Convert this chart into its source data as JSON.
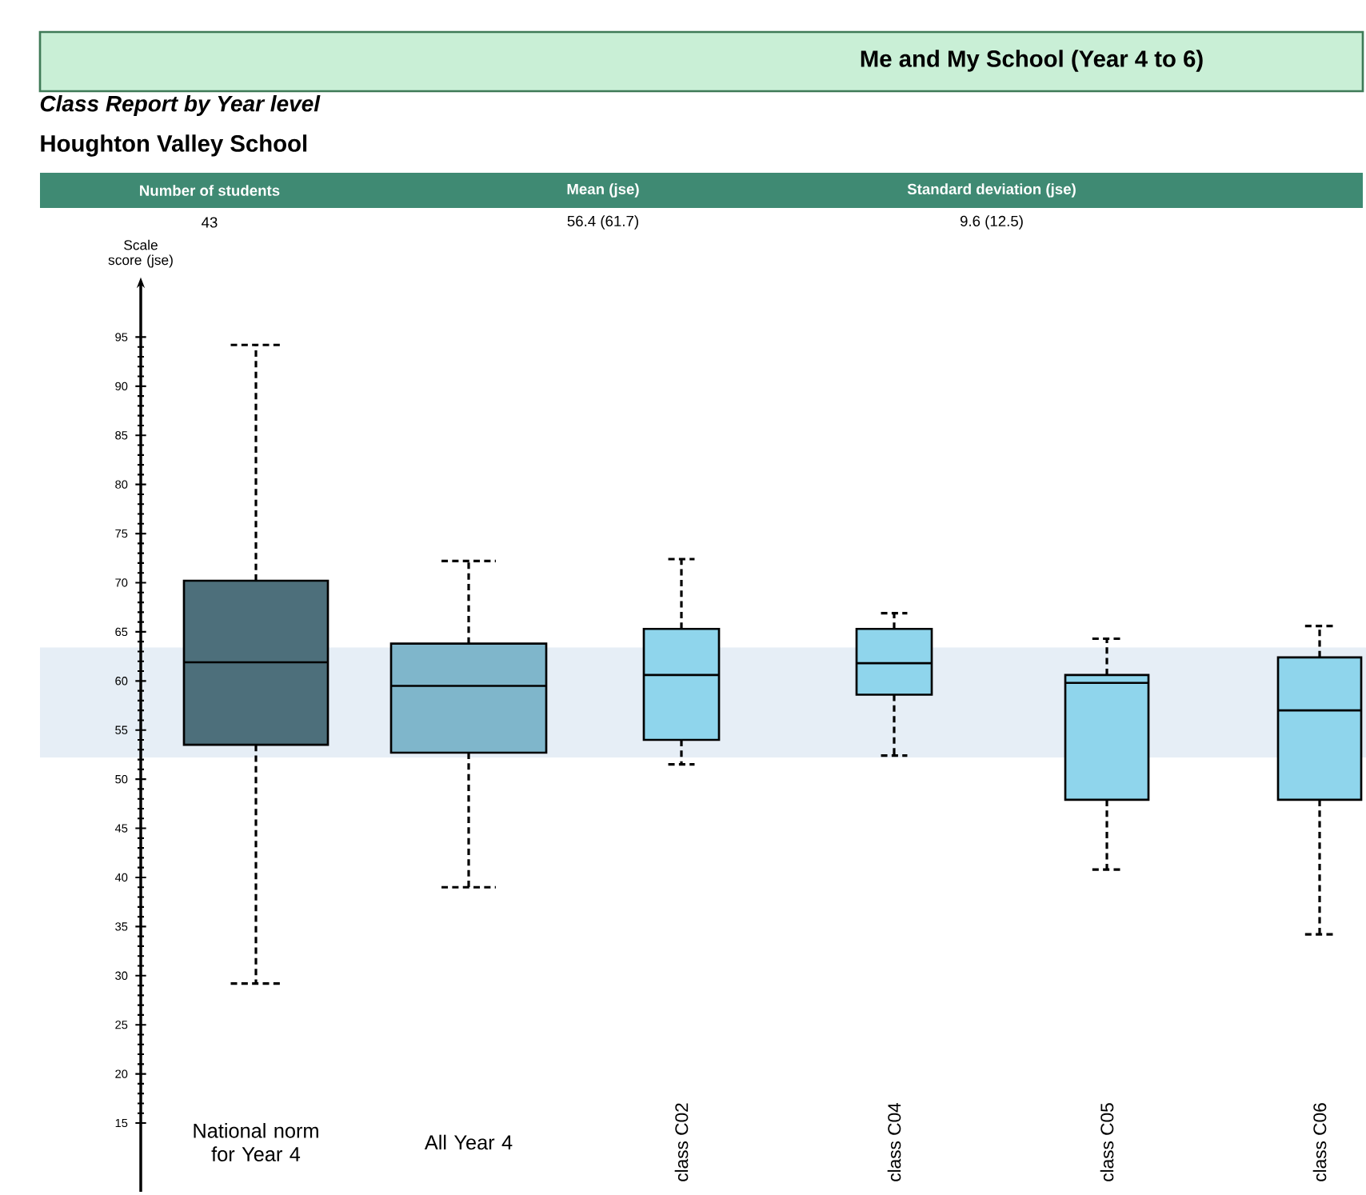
{
  "chart_data": {
    "type": "box",
    "title": "Me and My School (Year 4 to 6)",
    "subtitle": "Class Report by Year level",
    "ylabel": "Scale score (jse)",
    "annotations": [
      "Houghton Valley School",
      "Number of students",
      "43",
      "Mean (jse)",
      "56.4 (61.7)",
      "Standard deviation (jse)",
      "9.6 (12.5)"
    ],
    "categories": [
      "National norm for Year 4",
      "All Year 4",
      "class C02",
      "class C04",
      "class C05",
      "class C06"
    ],
    "colors": [
      "#4d6f7b",
      "#7fb6cb",
      "#8fd5ec",
      "#8fd5ec",
      "#8fd5ec",
      "#8fd5ec"
    ],
    "boxes": [
      {
        "low": 29.2,
        "q1": 53.5,
        "median": 61.9,
        "q3": 70.2,
        "high": 94.2
      },
      {
        "low": 39.0,
        "q1": 52.7,
        "median": 59.5,
        "q3": 63.8,
        "high": 72.2
      },
      {
        "low": 51.5,
        "q1": 54.0,
        "median": 60.6,
        "q3": 65.3,
        "high": 72.4
      },
      {
        "low": 52.4,
        "q1": 58.6,
        "median": 61.8,
        "q3": 65.3,
        "high": 66.9
      },
      {
        "low": 40.8,
        "q1": 47.9,
        "median": 59.8,
        "q3": 60.6,
        "high": 64.3
      },
      {
        "low": 34.2,
        "q1": 47.9,
        "median": 57.0,
        "q3": 62.4,
        "high": 65.6
      }
    ],
    "bands": [
      {
        "axis": "y",
        "from": 52.2,
        "to": 63.4,
        "color": "#e6eef6"
      }
    ],
    "ylim": [
      8,
      100
    ],
    "yticks": [
      15,
      20,
      25,
      30,
      35,
      40,
      45,
      50,
      55,
      60,
      65,
      70,
      75,
      80,
      85,
      90,
      95
    ]
  }
}
